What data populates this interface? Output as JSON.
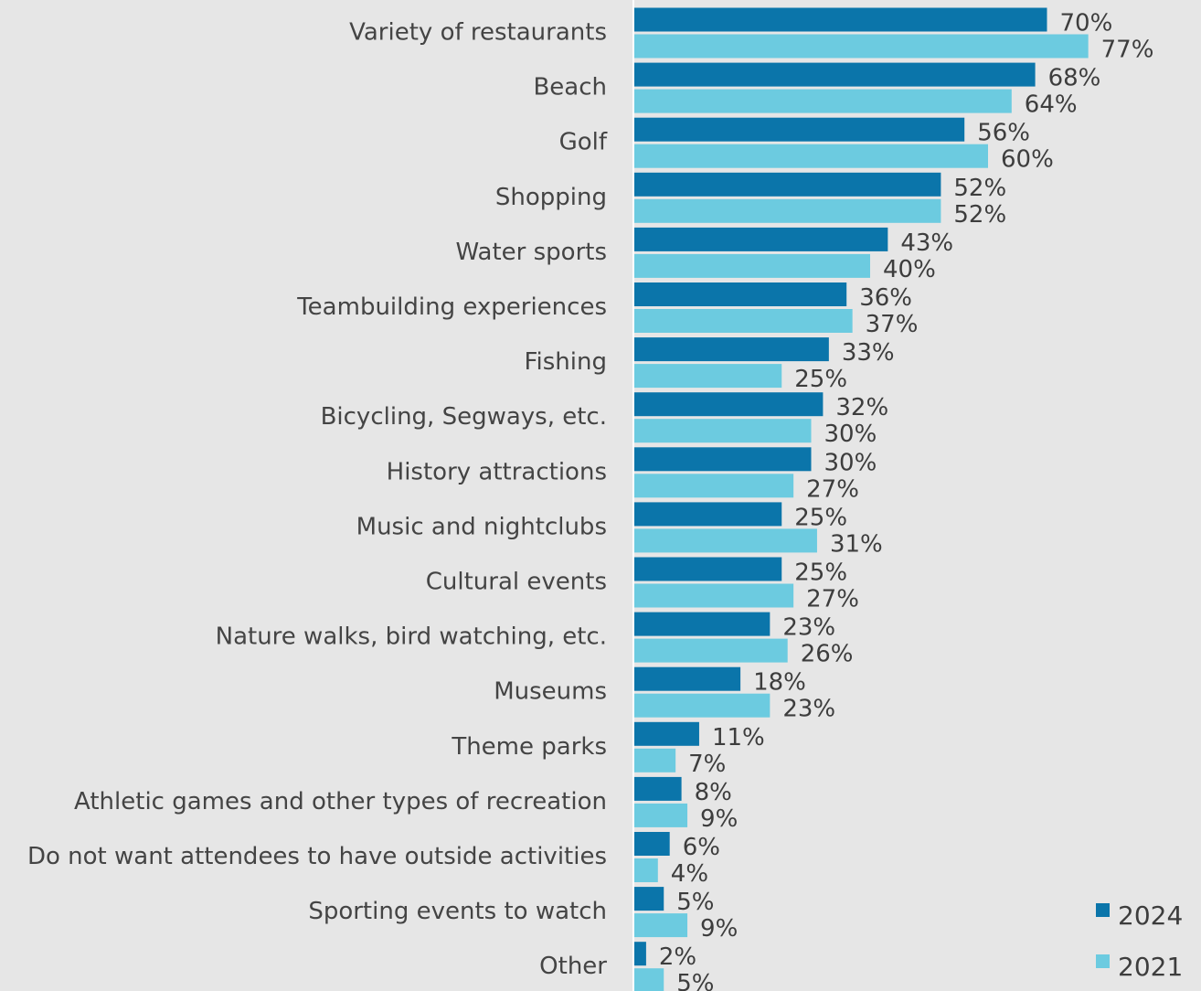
{
  "chart_data": {
    "type": "bar",
    "orientation": "horizontal",
    "categories": [
      "Variety of restaurants",
      "Beach",
      "Golf",
      "Shopping",
      "Water sports",
      "Teambuilding experiences",
      "Fishing",
      "Bicycling, Segways, etc.",
      "History attractions",
      "Music and nightclubs",
      "Cultural events",
      "Nature walks, bird watching, etc.",
      "Museums",
      "Theme parks",
      "Athletic games and other types of recreation",
      "Do not want attendees to have outside activities",
      "Sporting events to watch",
      "Other"
    ],
    "series": [
      {
        "name": "2024",
        "color": "#0b75aa",
        "values": [
          70,
          68,
          56,
          52,
          43,
          36,
          33,
          32,
          30,
          25,
          25,
          23,
          18,
          11,
          8,
          6,
          5,
          2
        ]
      },
      {
        "name": "2021",
        "color": "#6ccbe0",
        "values": [
          77,
          64,
          60,
          52,
          40,
          37,
          25,
          30,
          27,
          31,
          27,
          26,
          23,
          7,
          9,
          4,
          9,
          5
        ]
      }
    ],
    "value_suffix": "%",
    "xlim": [
      0,
      100
    ],
    "grid": false,
    "legend_position": "bottom-right",
    "background": "#e6e6e6"
  }
}
